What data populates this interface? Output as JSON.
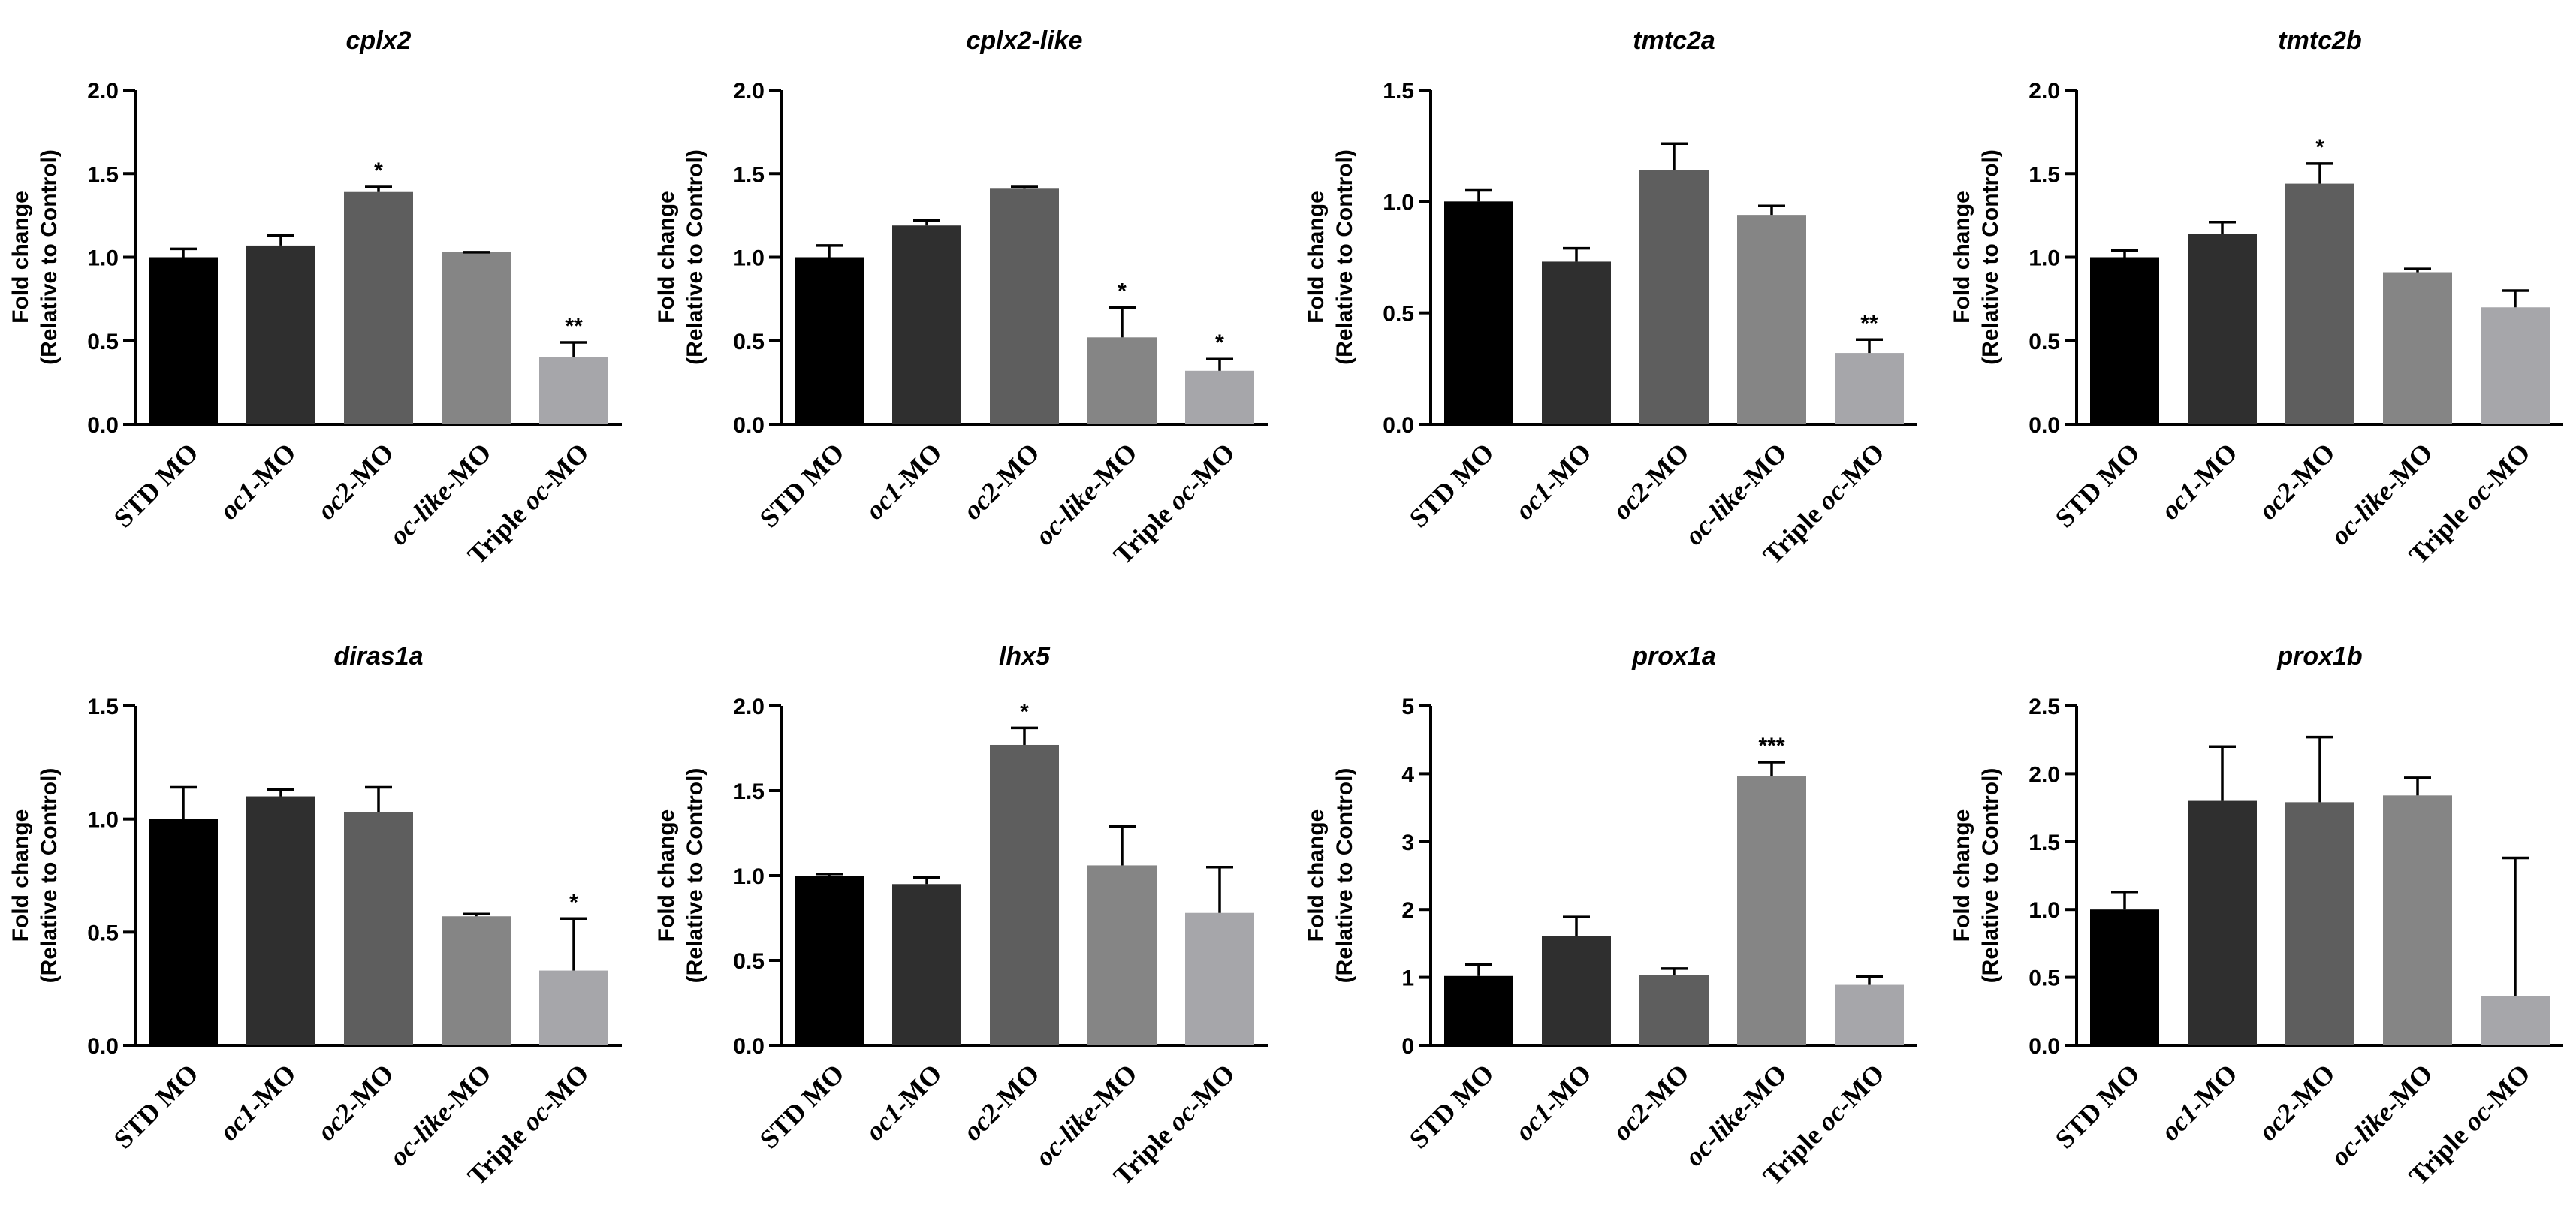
{
  "figure": {
    "ylabel_line1": "Fold change",
    "ylabel_line2": "(Relative to Control)",
    "categories": [
      {
        "label": "STD MO",
        "parts": [
          {
            "t": "STD MO",
            "i": false
          }
        ]
      },
      {
        "label": "oc1-MO",
        "parts": [
          {
            "t": "oc1",
            "i": true
          },
          {
            "t": "-MO",
            "i": false
          }
        ]
      },
      {
        "label": "oc2-MO",
        "parts": [
          {
            "t": "oc2",
            "i": true
          },
          {
            "t": "-MO",
            "i": false
          }
        ]
      },
      {
        "label": "oc-like-MO",
        "parts": [
          {
            "t": "oc-like",
            "i": true
          },
          {
            "t": "-MO",
            "i": false
          }
        ]
      },
      {
        "label": "Triple oc-MO",
        "parts": [
          {
            "t": "Triple ",
            "i": false
          },
          {
            "t": "oc",
            "i": true
          },
          {
            "t": "-MO",
            "i": false
          }
        ]
      }
    ],
    "bar_colors": [
      "#000000",
      "#2f2f2f",
      "#5e5e5e",
      "#858585",
      "#a6a6aa"
    ]
  },
  "chart_data": [
    {
      "type": "bar",
      "title": "cplx2",
      "ylim": [
        0,
        2.0
      ],
      "ticks": [
        "0.0",
        "0.5",
        "1.0",
        "1.5",
        "2.0"
      ],
      "values": [
        1.0,
        1.07,
        1.39,
        1.03,
        0.4
      ],
      "errors": [
        0.05,
        0.06,
        0.03,
        0.0,
        0.09
      ],
      "sig": [
        "",
        "",
        "*",
        "",
        "**"
      ]
    },
    {
      "type": "bar",
      "title": "cplx2-like",
      "ylim": [
        0,
        2.0
      ],
      "ticks": [
        "0.0",
        "0.5",
        "1.0",
        "1.5",
        "2.0"
      ],
      "values": [
        1.0,
        1.19,
        1.41,
        0.52,
        0.32
      ],
      "errors": [
        0.07,
        0.03,
        0.01,
        0.18,
        0.07
      ],
      "sig": [
        "",
        "",
        "",
        "*",
        "*"
      ]
    },
    {
      "type": "bar",
      "title": "tmtc2a",
      "ylim": [
        0,
        1.5
      ],
      "ticks": [
        "0.0",
        "0.5",
        "1.0",
        "1.5"
      ],
      "values": [
        1.0,
        0.73,
        1.14,
        0.94,
        0.32
      ],
      "errors": [
        0.05,
        0.06,
        0.12,
        0.04,
        0.06
      ],
      "sig": [
        "",
        "",
        "",
        "",
        "**"
      ]
    },
    {
      "type": "bar",
      "title": "tmtc2b",
      "ylim": [
        0,
        2.0
      ],
      "ticks": [
        "0.0",
        "0.5",
        "1.0",
        "1.5",
        "2.0"
      ],
      "values": [
        1.0,
        1.14,
        1.44,
        0.91,
        0.7
      ],
      "errors": [
        0.04,
        0.07,
        0.12,
        0.02,
        0.1
      ],
      "sig": [
        "",
        "",
        "*",
        "",
        ""
      ]
    },
    {
      "type": "bar",
      "title": "diras1a",
      "ylim": [
        0,
        1.5
      ],
      "ticks": [
        "0.0",
        "0.5",
        "1.0",
        "1.5"
      ],
      "values": [
        1.0,
        1.1,
        1.03,
        0.57,
        0.33
      ],
      "errors": [
        0.14,
        0.03,
        0.11,
        0.01,
        0.23
      ],
      "sig": [
        "",
        "",
        "",
        "",
        "*"
      ]
    },
    {
      "type": "bar",
      "title": "lhx5",
      "ylim": [
        0,
        2.0
      ],
      "ticks": [
        "0.0",
        "0.5",
        "1.0",
        "1.5",
        "2.0"
      ],
      "values": [
        1.0,
        0.95,
        1.77,
        1.06,
        0.78
      ],
      "errors": [
        0.01,
        0.04,
        0.1,
        0.23,
        0.27
      ],
      "sig": [
        "",
        "",
        "*",
        "",
        ""
      ]
    },
    {
      "type": "bar",
      "title": "prox1a",
      "ylim": [
        0,
        5
      ],
      "ticks": [
        "0",
        "1",
        "2",
        "3",
        "4",
        "5"
      ],
      "values": [
        1.02,
        1.61,
        1.03,
        3.96,
        0.89
      ],
      "errors": [
        0.17,
        0.28,
        0.1,
        0.21,
        0.12
      ],
      "sig": [
        "",
        "",
        "",
        "***",
        ""
      ]
    },
    {
      "type": "bar",
      "title": "prox1b",
      "ylim": [
        0,
        2.5
      ],
      "ticks": [
        "0.0",
        "0.5",
        "1.0",
        "1.5",
        "2.0",
        "2.5"
      ],
      "values": [
        1.0,
        1.8,
        1.79,
        1.84,
        0.36
      ],
      "errors": [
        0.13,
        0.4,
        0.48,
        0.13,
        1.02
      ],
      "sig": [
        "",
        "",
        "",
        "",
        ""
      ]
    }
  ]
}
